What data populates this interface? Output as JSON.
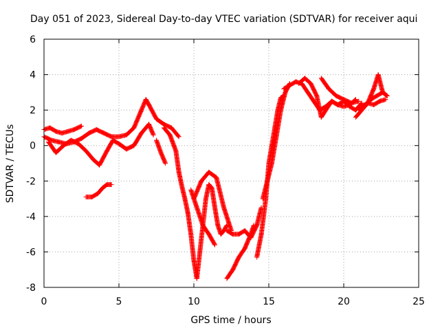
{
  "chart_data": {
    "type": "scatter",
    "title": "Day 051 of 2023, Sidereal Day-to-day VTEC variation (SDTVAR) for receiver aqui",
    "xlabel": "GPS time / hours",
    "ylabel": "SDTVAR / TECUs",
    "xlim": [
      0,
      25
    ],
    "ylim": [
      -8,
      6
    ],
    "x_ticks": [
      "0",
      "5",
      "10",
      "15",
      "20",
      "25"
    ],
    "y_ticks": [
      "-8",
      "-6",
      "-4",
      "-2",
      "0",
      "2",
      "4",
      "6"
    ],
    "grid": true,
    "legend": "none",
    "marker": "plus",
    "color": "#ff0000",
    "series": [
      {
        "x": [
          0.0,
          0.5,
          1.0,
          1.5,
          2.0,
          2.5,
          3.0,
          3.5,
          4.0,
          4.5,
          5.0,
          5.5,
          6.0,
          6.5,
          6.8,
          7.0,
          7.5,
          8.0,
          8.5,
          9.0
        ],
        "values": [
          0.5,
          0.3,
          0.2,
          0.1,
          0.2,
          0.4,
          0.7,
          0.9,
          0.7,
          0.5,
          0.5,
          0.6,
          1.0,
          2.0,
          2.6,
          2.3,
          1.5,
          1.2,
          1.0,
          0.5
        ]
      },
      {
        "x": [
          0.0,
          0.4,
          0.8,
          1.2,
          1.6,
          2.0,
          2.5
        ],
        "values": [
          0.9,
          1.0,
          0.8,
          0.7,
          0.8,
          0.9,
          1.1
        ]
      },
      {
        "x": [
          0.3,
          0.8,
          1.3,
          1.8,
          2.3,
          2.8,
          3.3,
          3.7,
          4.2,
          4.6
        ],
        "values": [
          0.2,
          -0.4,
          0.0,
          0.3,
          0.1,
          -0.3,
          -0.8,
          -1.1,
          -0.3,
          0.3
        ]
      },
      {
        "x": [
          4.6,
          5.0,
          5.5,
          6.0,
          6.5,
          7.0,
          7.3
        ],
        "values": [
          0.3,
          0.1,
          -0.2,
          0.0,
          0.7,
          1.2,
          0.6
        ]
      },
      {
        "x": [
          2.8,
          3.2,
          3.6,
          3.9,
          4.2,
          4.5
        ],
        "values": [
          -2.9,
          -2.9,
          -2.7,
          -2.4,
          -2.2,
          -2.2
        ]
      },
      {
        "x": [
          7.5,
          7.8,
          8.1
        ],
        "values": [
          0.3,
          -0.4,
          -1.0
        ]
      },
      {
        "x": [
          8.0,
          8.4,
          8.8,
          9.0,
          9.2,
          9.4,
          9.6,
          9.8,
          10.0,
          10.2,
          10.4,
          10.6,
          10.8,
          11.0,
          11.2,
          11.4,
          11.6,
          11.8,
          12.0,
          12.2
        ],
        "values": [
          1.0,
          0.6,
          -0.3,
          -1.5,
          -2.3,
          -3.0,
          -3.8,
          -5.0,
          -6.5,
          -7.5,
          -6.0,
          -4.5,
          -3.0,
          -2.2,
          -2.4,
          -3.5,
          -4.5,
          -5.0,
          -4.8,
          -4.5
        ]
      },
      {
        "x": [
          9.8,
          10.2,
          10.6,
          11.0,
          11.4
        ],
        "values": [
          -2.5,
          -3.5,
          -4.5,
          -5.0,
          -5.6
        ]
      },
      {
        "x": [
          10.0,
          10.5,
          11.0,
          11.5,
          12.0,
          12.5
        ],
        "values": [
          -3.0,
          -2.0,
          -1.5,
          -1.8,
          -3.5,
          -4.8
        ]
      },
      {
        "x": [
          12.2,
          12.6,
          13.0,
          13.4,
          13.8,
          14.0
        ],
        "values": [
          -7.5,
          -7.0,
          -6.3,
          -5.8,
          -5.0,
          -4.5
        ]
      },
      {
        "x": [
          12.2,
          12.6,
          13.0,
          13.4,
          13.8,
          14.2,
          14.5
        ],
        "values": [
          -4.8,
          -5.0,
          -5.0,
          -4.8,
          -5.2,
          -4.5,
          -3.5
        ]
      },
      {
        "x": [
          14.2,
          14.5,
          14.8,
          15.0,
          15.2,
          15.4,
          15.6,
          15.8,
          16.0
        ],
        "values": [
          -6.3,
          -5.0,
          -3.0,
          -1.0,
          0.0,
          1.0,
          2.0,
          2.7,
          2.8
        ]
      },
      {
        "x": [
          14.6,
          14.9,
          15.2,
          15.5,
          15.8,
          16.1,
          16.4
        ],
        "values": [
          -3.0,
          -2.0,
          -1.0,
          0.5,
          2.0,
          3.0,
          3.5
        ]
      },
      {
        "x": [
          16.0,
          16.4,
          16.8,
          17.2,
          17.6,
          18.0,
          18.4,
          18.8,
          19.2,
          19.6,
          20.0,
          20.4,
          20.8,
          21.2
        ],
        "values": [
          3.2,
          3.4,
          3.6,
          3.5,
          3.0,
          2.5,
          2.0,
          2.2,
          2.5,
          2.3,
          2.5,
          2.2,
          2.0,
          2.4
        ]
      },
      {
        "x": [
          17.0,
          17.4,
          17.8,
          18.2,
          18.5,
          18.8,
          19.2,
          19.6,
          20.0,
          20.4,
          20.8
        ],
        "values": [
          3.5,
          3.8,
          3.5,
          2.8,
          1.6,
          2.0,
          2.5,
          2.3,
          2.2,
          2.3,
          2.6
        ]
      },
      {
        "x": [
          18.5,
          19.0,
          19.5,
          20.0,
          20.5,
          21.0
        ],
        "values": [
          3.8,
          3.2,
          2.8,
          2.6,
          2.4,
          2.5
        ]
      },
      {
        "x": [
          20.8,
          21.2,
          21.6,
          22.0,
          22.3,
          22.6,
          22.9
        ],
        "values": [
          1.6,
          2.0,
          2.4,
          3.2,
          4.0,
          3.0,
          2.8
        ]
      },
      {
        "x": [
          21.0,
          21.4,
          21.8,
          22.2,
          22.6,
          22.9
        ],
        "values": [
          2.0,
          2.2,
          2.6,
          2.8,
          3.0,
          2.8
        ]
      },
      {
        "x": [
          21.2,
          21.6,
          22.0,
          22.4,
          22.8
        ],
        "values": [
          2.2,
          2.4,
          2.3,
          2.5,
          2.6
        ]
      }
    ]
  }
}
